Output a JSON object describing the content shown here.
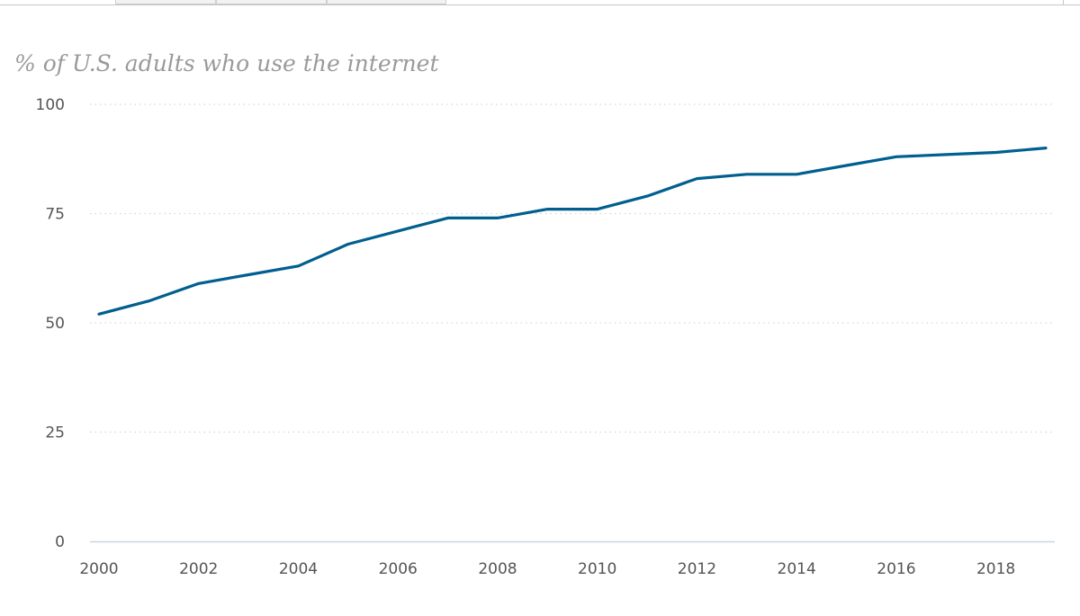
{
  "chart_data": {
    "type": "line",
    "title": "% of U.S. adults who use the internet",
    "xlabel": "",
    "ylabel": "",
    "x": [
      2000,
      2001,
      2002,
      2003,
      2004,
      2005,
      2006,
      2007,
      2008,
      2009,
      2010,
      2011,
      2012,
      2013,
      2014,
      2015,
      2016,
      2017,
      2018,
      2019
    ],
    "series": [
      {
        "values": [
          52,
          55,
          59,
          61,
          63,
          68,
          71,
          74,
          74,
          76,
          76,
          79,
          83,
          84,
          84,
          86,
          88,
          88.5,
          89,
          90
        ],
        "color": "#005f8f"
      }
    ],
    "xlim": [
      2000,
      2019
    ],
    "ylim": [
      0,
      100
    ],
    "x_ticks": [
      "2000",
      "2002",
      "2004",
      "2006",
      "2008",
      "2010",
      "2012",
      "2014",
      "2016",
      "2018"
    ],
    "y_ticks": [
      "0",
      "25",
      "50",
      "75",
      "100"
    ],
    "grid": true,
    "gridline_color": "#d6d6d6",
    "axis_color": "#c9d6e0"
  }
}
